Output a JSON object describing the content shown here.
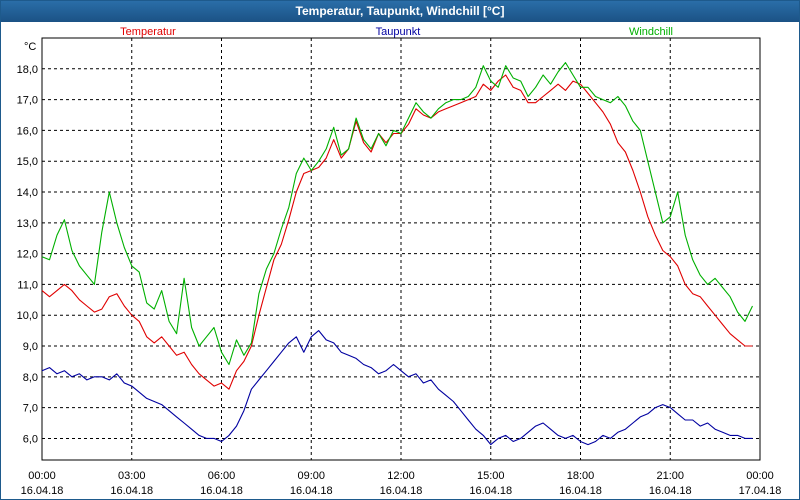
{
  "window": {
    "title": "Temperatur, Taupunkt, Windchill [°C]"
  },
  "colors": {
    "temperatur": "#e00000",
    "taupunkt": "#0000a0",
    "windchill": "#00b000",
    "grid": "#000000",
    "titlebar": "#1b5285"
  },
  "chart_data": {
    "type": "line",
    "title": "Temperatur, Taupunkt, Windchill [°C]",
    "ylabel": "°C",
    "xlabel": "",
    "ylim": [
      5.3,
      19.0
    ],
    "xlim": [
      0,
      24
    ],
    "grid": true,
    "legend_position": "top",
    "y_ticks": [
      "6,0",
      "7,0",
      "8,0",
      "9,0",
      "10,0",
      "11,0",
      "12,0",
      "13,0",
      "14,0",
      "15,0",
      "16,0",
      "17,0",
      "18,0"
    ],
    "x_ticks": [
      {
        "time": "00:00",
        "date": "16.04.18"
      },
      {
        "time": "03:00",
        "date": "16.04.18"
      },
      {
        "time": "06:00",
        "date": "16.04.18"
      },
      {
        "time": "09:00",
        "date": "16.04.18"
      },
      {
        "time": "12:00",
        "date": "16.04.18"
      },
      {
        "time": "15:00",
        "date": "16.04.18"
      },
      {
        "time": "18:00",
        "date": "16.04.18"
      },
      {
        "time": "21:00",
        "date": "16.04.18"
      },
      {
        "time": "00:00",
        "date": "17.04.18"
      }
    ],
    "series": [
      {
        "name": "Temperatur",
        "color": "#e00000",
        "legend_align": "left",
        "points": [
          [
            0,
            10.8
          ],
          [
            0.25,
            10.6
          ],
          [
            0.5,
            10.8
          ],
          [
            0.75,
            11.0
          ],
          [
            1.0,
            10.8
          ],
          [
            1.25,
            10.5
          ],
          [
            1.5,
            10.3
          ],
          [
            1.75,
            10.1
          ],
          [
            2.0,
            10.2
          ],
          [
            2.25,
            10.6
          ],
          [
            2.5,
            10.7
          ],
          [
            2.75,
            10.3
          ],
          [
            3.0,
            10.0
          ],
          [
            3.25,
            9.8
          ],
          [
            3.5,
            9.3
          ],
          [
            3.75,
            9.1
          ],
          [
            4.0,
            9.3
          ],
          [
            4.25,
            9.0
          ],
          [
            4.5,
            8.7
          ],
          [
            4.75,
            8.8
          ],
          [
            5.0,
            8.4
          ],
          [
            5.25,
            8.1
          ],
          [
            5.5,
            7.9
          ],
          [
            5.75,
            7.7
          ],
          [
            6.0,
            7.8
          ],
          [
            6.25,
            7.6
          ],
          [
            6.5,
            8.2
          ],
          [
            6.75,
            8.5
          ],
          [
            7.0,
            9.0
          ],
          [
            7.25,
            10.0
          ],
          [
            7.5,
            10.9
          ],
          [
            7.75,
            11.8
          ],
          [
            8.0,
            12.3
          ],
          [
            8.25,
            13.1
          ],
          [
            8.5,
            14.0
          ],
          [
            8.75,
            14.6
          ],
          [
            9.0,
            14.7
          ],
          [
            9.25,
            14.8
          ],
          [
            9.5,
            15.1
          ],
          [
            9.75,
            15.7
          ],
          [
            10.0,
            15.1
          ],
          [
            10.25,
            15.4
          ],
          [
            10.5,
            16.3
          ],
          [
            10.75,
            15.6
          ],
          [
            11.0,
            15.3
          ],
          [
            11.25,
            15.9
          ],
          [
            11.5,
            15.6
          ],
          [
            11.75,
            15.9
          ],
          [
            12.0,
            15.9
          ],
          [
            12.25,
            16.2
          ],
          [
            12.5,
            16.7
          ],
          [
            12.75,
            16.5
          ],
          [
            13.0,
            16.4
          ],
          [
            13.25,
            16.6
          ],
          [
            13.5,
            16.7
          ],
          [
            13.75,
            16.8
          ],
          [
            14.0,
            16.9
          ],
          [
            14.25,
            17.0
          ],
          [
            14.5,
            17.1
          ],
          [
            14.75,
            17.5
          ],
          [
            15.0,
            17.3
          ],
          [
            15.25,
            17.6
          ],
          [
            15.5,
            17.8
          ],
          [
            15.75,
            17.4
          ],
          [
            16.0,
            17.3
          ],
          [
            16.25,
            16.9
          ],
          [
            16.5,
            16.9
          ],
          [
            16.75,
            17.1
          ],
          [
            17.0,
            17.3
          ],
          [
            17.25,
            17.5
          ],
          [
            17.5,
            17.3
          ],
          [
            17.75,
            17.6
          ],
          [
            18.0,
            17.5
          ],
          [
            18.25,
            17.2
          ],
          [
            18.5,
            16.9
          ],
          [
            18.75,
            16.6
          ],
          [
            19.0,
            16.2
          ],
          [
            19.25,
            15.6
          ],
          [
            19.5,
            15.3
          ],
          [
            19.75,
            14.7
          ],
          [
            20.0,
            14.0
          ],
          [
            20.25,
            13.2
          ],
          [
            20.5,
            12.6
          ],
          [
            20.75,
            12.1
          ],
          [
            21.0,
            11.9
          ],
          [
            21.25,
            11.6
          ],
          [
            21.5,
            11.0
          ],
          [
            21.75,
            10.7
          ],
          [
            22.0,
            10.6
          ],
          [
            22.25,
            10.3
          ],
          [
            22.5,
            10.0
          ],
          [
            22.75,
            9.7
          ],
          [
            23.0,
            9.4
          ],
          [
            23.25,
            9.2
          ],
          [
            23.5,
            9.0
          ],
          [
            23.75,
            9.0
          ]
        ]
      },
      {
        "name": "Taupunkt",
        "color": "#0000a0",
        "legend_align": "center",
        "points": [
          [
            0,
            8.2
          ],
          [
            0.25,
            8.3
          ],
          [
            0.5,
            8.1
          ],
          [
            0.75,
            8.2
          ],
          [
            1.0,
            8.0
          ],
          [
            1.25,
            8.1
          ],
          [
            1.5,
            7.9
          ],
          [
            1.75,
            8.0
          ],
          [
            2.0,
            8.0
          ],
          [
            2.25,
            7.9
          ],
          [
            2.5,
            8.1
          ],
          [
            2.75,
            7.8
          ],
          [
            3.0,
            7.7
          ],
          [
            3.25,
            7.5
          ],
          [
            3.5,
            7.3
          ],
          [
            3.75,
            7.2
          ],
          [
            4.0,
            7.1
          ],
          [
            4.25,
            6.9
          ],
          [
            4.5,
            6.7
          ],
          [
            4.75,
            6.5
          ],
          [
            5.0,
            6.3
          ],
          [
            5.25,
            6.1
          ],
          [
            5.5,
            6.0
          ],
          [
            5.75,
            6.0
          ],
          [
            6.0,
            5.9
          ],
          [
            6.25,
            6.1
          ],
          [
            6.5,
            6.4
          ],
          [
            6.75,
            6.9
          ],
          [
            7.0,
            7.6
          ],
          [
            7.25,
            7.9
          ],
          [
            7.5,
            8.2
          ],
          [
            7.75,
            8.5
          ],
          [
            8.0,
            8.8
          ],
          [
            8.25,
            9.1
          ],
          [
            8.5,
            9.3
          ],
          [
            8.75,
            8.8
          ],
          [
            9.0,
            9.3
          ],
          [
            9.25,
            9.5
          ],
          [
            9.5,
            9.2
          ],
          [
            9.75,
            9.1
          ],
          [
            10.0,
            8.8
          ],
          [
            10.25,
            8.7
          ],
          [
            10.5,
            8.6
          ],
          [
            10.75,
            8.4
          ],
          [
            11.0,
            8.3
          ],
          [
            11.25,
            8.1
          ],
          [
            11.5,
            8.2
          ],
          [
            11.75,
            8.4
          ],
          [
            12.0,
            8.2
          ],
          [
            12.25,
            8.0
          ],
          [
            12.5,
            8.1
          ],
          [
            12.75,
            7.8
          ],
          [
            13.0,
            7.9
          ],
          [
            13.25,
            7.6
          ],
          [
            13.5,
            7.4
          ],
          [
            13.75,
            7.2
          ],
          [
            14.0,
            6.9
          ],
          [
            14.25,
            6.6
          ],
          [
            14.5,
            6.3
          ],
          [
            14.75,
            6.1
          ],
          [
            15.0,
            5.8
          ],
          [
            15.25,
            6.0
          ],
          [
            15.5,
            6.1
          ],
          [
            15.75,
            5.9
          ],
          [
            16.0,
            6.0
          ],
          [
            16.25,
            6.2
          ],
          [
            16.5,
            6.4
          ],
          [
            16.75,
            6.5
          ],
          [
            17.0,
            6.3
          ],
          [
            17.25,
            6.1
          ],
          [
            17.5,
            6.0
          ],
          [
            17.75,
            6.1
          ],
          [
            18.0,
            5.9
          ],
          [
            18.25,
            5.8
          ],
          [
            18.5,
            5.9
          ],
          [
            18.75,
            6.1
          ],
          [
            19.0,
            6.0
          ],
          [
            19.25,
            6.2
          ],
          [
            19.5,
            6.3
          ],
          [
            19.75,
            6.5
          ],
          [
            20.0,
            6.7
          ],
          [
            20.25,
            6.8
          ],
          [
            20.5,
            7.0
          ],
          [
            20.75,
            7.1
          ],
          [
            21.0,
            7.0
          ],
          [
            21.25,
            6.8
          ],
          [
            21.5,
            6.6
          ],
          [
            21.75,
            6.6
          ],
          [
            22.0,
            6.4
          ],
          [
            22.25,
            6.5
          ],
          [
            22.5,
            6.3
          ],
          [
            22.75,
            6.2
          ],
          [
            23.0,
            6.1
          ],
          [
            23.25,
            6.1
          ],
          [
            23.5,
            6.0
          ],
          [
            23.75,
            6.0
          ]
        ]
      },
      {
        "name": "Windchill",
        "color": "#00b000",
        "legend_align": "right",
        "points": [
          [
            0,
            11.9
          ],
          [
            0.25,
            11.8
          ],
          [
            0.5,
            12.6
          ],
          [
            0.75,
            13.1
          ],
          [
            1.0,
            12.1
          ],
          [
            1.25,
            11.6
          ],
          [
            1.5,
            11.3
          ],
          [
            1.75,
            11.0
          ],
          [
            2.0,
            12.7
          ],
          [
            2.25,
            14.0
          ],
          [
            2.5,
            13.0
          ],
          [
            2.75,
            12.2
          ],
          [
            3.0,
            11.6
          ],
          [
            3.25,
            11.4
          ],
          [
            3.5,
            10.4
          ],
          [
            3.75,
            10.2
          ],
          [
            4.0,
            10.8
          ],
          [
            4.25,
            9.8
          ],
          [
            4.5,
            9.4
          ],
          [
            4.75,
            11.2
          ],
          [
            5.0,
            9.6
          ],
          [
            5.25,
            9.0
          ],
          [
            5.5,
            9.3
          ],
          [
            5.75,
            9.6
          ],
          [
            6.0,
            8.8
          ],
          [
            6.25,
            8.4
          ],
          [
            6.5,
            9.2
          ],
          [
            6.75,
            8.7
          ],
          [
            7.0,
            9.1
          ],
          [
            7.25,
            10.7
          ],
          [
            7.5,
            11.5
          ],
          [
            7.75,
            12.0
          ],
          [
            8.0,
            12.8
          ],
          [
            8.25,
            13.5
          ],
          [
            8.5,
            14.6
          ],
          [
            8.75,
            15.1
          ],
          [
            9.0,
            14.7
          ],
          [
            9.25,
            15.0
          ],
          [
            9.5,
            15.4
          ],
          [
            9.75,
            16.1
          ],
          [
            10.0,
            15.2
          ],
          [
            10.25,
            15.4
          ],
          [
            10.5,
            16.4
          ],
          [
            10.75,
            15.7
          ],
          [
            11.0,
            15.4
          ],
          [
            11.25,
            15.9
          ],
          [
            11.5,
            15.5
          ],
          [
            11.75,
            16.0
          ],
          [
            12.0,
            15.9
          ],
          [
            12.25,
            16.4
          ],
          [
            12.5,
            16.9
          ],
          [
            12.75,
            16.6
          ],
          [
            13.0,
            16.4
          ],
          [
            13.25,
            16.7
          ],
          [
            13.5,
            16.9
          ],
          [
            13.75,
            17.0
          ],
          [
            14.0,
            17.0
          ],
          [
            14.25,
            17.1
          ],
          [
            14.5,
            17.4
          ],
          [
            14.75,
            18.1
          ],
          [
            15.0,
            17.6
          ],
          [
            15.25,
            17.4
          ],
          [
            15.5,
            18.1
          ],
          [
            15.75,
            17.7
          ],
          [
            16.0,
            17.6
          ],
          [
            16.25,
            17.1
          ],
          [
            16.5,
            17.4
          ],
          [
            16.75,
            17.8
          ],
          [
            17.0,
            17.5
          ],
          [
            17.25,
            17.9
          ],
          [
            17.5,
            18.2
          ],
          [
            17.75,
            17.8
          ],
          [
            18.0,
            17.4
          ],
          [
            18.25,
            17.4
          ],
          [
            18.5,
            17.1
          ],
          [
            18.75,
            17.0
          ],
          [
            19.0,
            16.9
          ],
          [
            19.25,
            17.1
          ],
          [
            19.5,
            16.8
          ],
          [
            19.75,
            16.3
          ],
          [
            20.0,
            16.0
          ],
          [
            20.25,
            15.0
          ],
          [
            20.5,
            14.0
          ],
          [
            20.75,
            13.0
          ],
          [
            21.0,
            13.2
          ],
          [
            21.25,
            14.0
          ],
          [
            21.5,
            12.6
          ],
          [
            21.75,
            11.8
          ],
          [
            22.0,
            11.3
          ],
          [
            22.25,
            11.0
          ],
          [
            22.5,
            11.2
          ],
          [
            22.75,
            10.9
          ],
          [
            23.0,
            10.6
          ],
          [
            23.25,
            10.1
          ],
          [
            23.5,
            9.8
          ],
          [
            23.75,
            10.3
          ]
        ]
      }
    ]
  }
}
